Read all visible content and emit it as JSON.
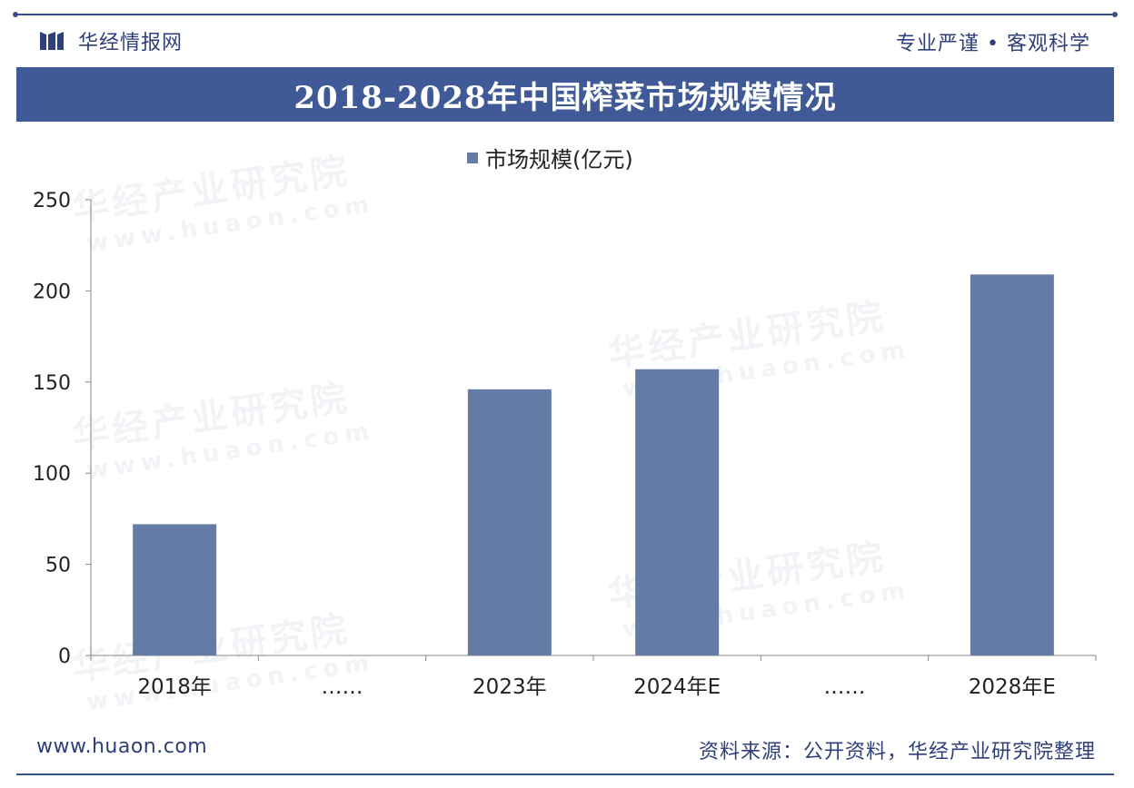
{
  "header": {
    "brand": "华经情报网",
    "slogan": "专业严谨 • 客观科学",
    "title": "2018-2028年中国榨菜市场规模情况"
  },
  "watermark": {
    "cn": "华经产业研究院",
    "en": "www.huaon.com"
  },
  "footer": {
    "url": "www.huaon.com",
    "source": "资料来源：公开资料，华经产业研究院整理"
  },
  "colors": {
    "accent": "#3f5a96",
    "bar": "#637ba5",
    "text": "#2f3f7a"
  },
  "chart_data": {
    "type": "bar",
    "categories": [
      "2018年",
      "……",
      "2023年",
      "2024年E",
      "……",
      "2028年E"
    ],
    "series": [
      {
        "name": "市场规模(亿元)",
        "values": [
          72,
          null,
          146,
          157,
          null,
          209
        ]
      }
    ],
    "ylim": [
      0,
      250
    ],
    "yticks": [
      0,
      50,
      100,
      150,
      200,
      250
    ],
    "legend": "top-center",
    "grid": false
  }
}
